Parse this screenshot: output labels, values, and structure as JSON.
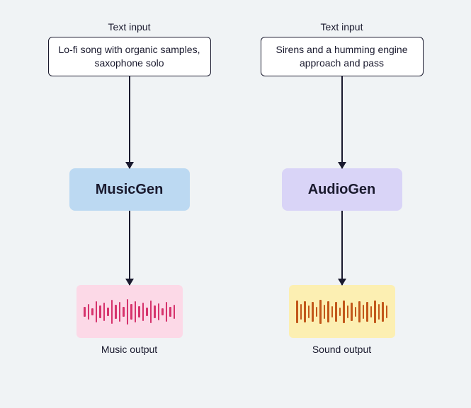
{
  "background_color": "#f0f3f5",
  "text_color": "#1a1a2e",
  "flows": [
    {
      "top_label": "Text input",
      "input_text": "Lo-fi song with organic samples, saxophone solo",
      "model_name": "MusicGen",
      "model_bg": "#bcd9f2",
      "output_bg": "#fcd9e7",
      "waveform_color": "#d6336c",
      "bottom_label": "Music output",
      "waveform_heights": [
        14,
        22,
        10,
        30,
        18,
        26,
        12,
        34,
        20,
        28,
        14,
        36,
        22,
        30,
        16,
        26,
        12,
        32,
        18,
        24,
        10,
        28,
        14,
        20
      ]
    },
    {
      "top_label": "Text input",
      "input_text": "Sirens and a humming engine approach and pass",
      "model_name": "AudioGen",
      "model_bg": "#d9d4f7",
      "output_bg": "#fcefb2",
      "waveform_color": "#c2571a",
      "bottom_label": "Sound output",
      "waveform_heights": [
        32,
        22,
        30,
        18,
        28,
        14,
        34,
        20,
        30,
        16,
        28,
        12,
        32,
        18,
        26,
        14,
        30,
        20,
        28,
        16,
        32,
        22,
        28,
        18
      ]
    }
  ]
}
